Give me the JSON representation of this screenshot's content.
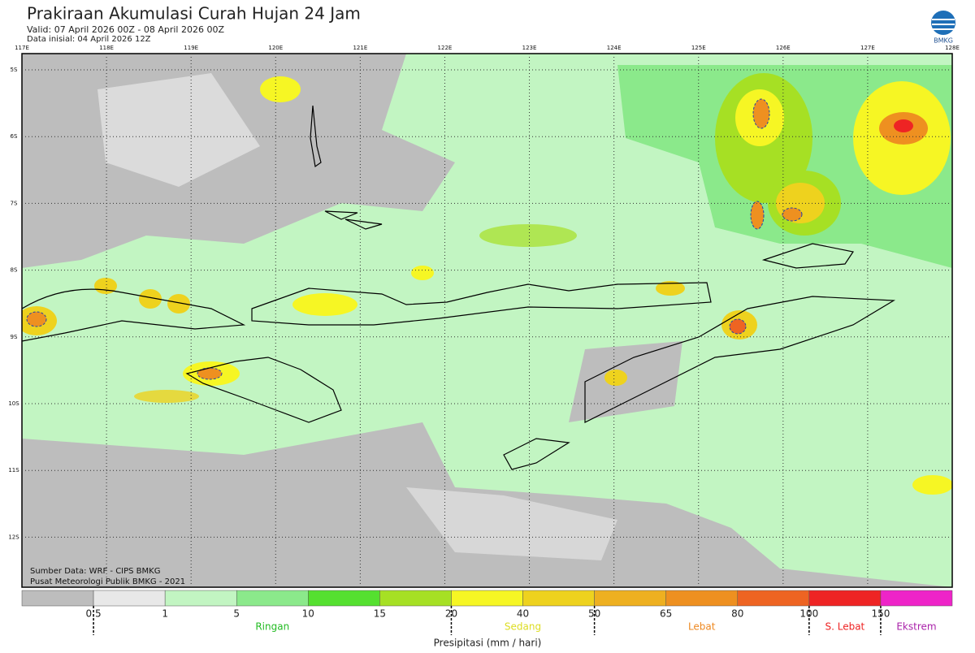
{
  "header": {
    "title": "Prakiraan Akumulasi Curah Hujan 24 Jam",
    "valid": "Valid: 07 April 2026 00Z - 08 April 2026 00Z",
    "initial": "Data inisial: 04 April 2026 12Z"
  },
  "logo": {
    "text": "BMKG"
  },
  "map": {
    "lon_labels": [
      "117E",
      "118E",
      "119E",
      "120E",
      "121E",
      "122E",
      "123E",
      "124E",
      "125E",
      "126E",
      "127E",
      "128E"
    ],
    "lat_labels": [
      "5S",
      "6S",
      "7S",
      "8S",
      "9S",
      "10S",
      "11S",
      "12S"
    ],
    "credits": [
      "Sumber Data: WRF - CIPS BMKG",
      "Pusat Meteorologi Publik BMKG - 2021"
    ]
  },
  "legend": {
    "bins": [
      "#bdbdbd",
      "#e8e8e8",
      "#c2f5c2",
      "#8be98b",
      "#55e030",
      "#a6e024",
      "#f6f624",
      "#eed21e",
      "#eeb020",
      "#ee9020",
      "#ee6422",
      "#ee2424",
      "#ee24c8"
    ],
    "ticks": [
      "0.5",
      "1",
      "5",
      "10",
      "15",
      "20",
      "40",
      "50",
      "65",
      "80",
      "100",
      "150"
    ],
    "categories": [
      {
        "label": "Ringan",
        "color": "#22bb22"
      },
      {
        "label": "Sedang",
        "color": "#dddd22"
      },
      {
        "label": "Lebat",
        "color": "#ee8820"
      },
      {
        "label": "S. Lebat",
        "color": "#ee2222"
      },
      {
        "label": "Ekstrem",
        "color": "#aa22aa"
      }
    ],
    "axis_title": "Presipitasi (mm / hari)"
  }
}
